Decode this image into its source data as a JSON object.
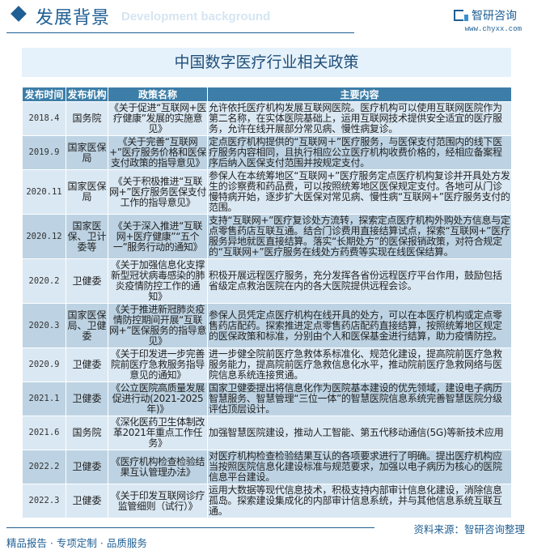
{
  "header": {
    "title": "发展背景",
    "subtitle": "Development background",
    "brand": "智研咨询",
    "url": "www.chyxx.com"
  },
  "table_title": "中国数字医疗行业相关政策",
  "columns": [
    "发布时间",
    "发布机构",
    "政策名称",
    "主要内容"
  ],
  "rows": [
    {
      "date": "2018.4",
      "org": "国务院",
      "name": "《关于促进“互联网+医疗健康”发展的实施意见》",
      "content": "允许依托医疗机构发展互联网医院。医疗机构可以使用互联网医院作为第二名称，在实体医院基础上，运用互联网技术提供安全适宜的医疗服务，允许在线开展部分常见病、慢性病复诊。"
    },
    {
      "date": "2019.9",
      "org": "国家医保局",
      "name": "《关于完善“互联网+”医疗服务价格和医保支付政策的指导意见》",
      "content": "定点医疗机构提供的“互联网＋”医疗服务，与医保支付范围内的线下医疗服务内容相同，且执行相应公立医疗机构收费价格的，经相应备案程序后纳入医保支付范围并按规定支付。"
    },
    {
      "date": "2020.11",
      "org": "国家医保局",
      "name": "《关于积极推进“互联网+”医疗服务医保支付工作的指导意见》",
      "content": "参保人在本统筹地区“互联网+”医疗服务定点医疗机构复诊并开具处方发生的诊察费和药品费，可以按照统筹地区医保规定支付。各地可从门诊慢特病开始，逐步扩大医保对常见病、慢性病“互联网+”医疗服务支付的范围。"
    },
    {
      "date": "2020.12",
      "org": "国家医保、卫计委等",
      "name": "《关于深入推进“互联网+医疗健康”“五个一”服务行动的通知》",
      "content": "支持“互联网+”医疗复诊处方流转，探索定点医疗机构外购处方信息与定点零售药店互联互通。结合门诊费用直接结算试点，探索“互联网+”医疗服务异地就医直接结算。落实“长期处方”的医保报销政策，对符合规定的“互联网+”医疗服务在线处方药费等实现在线医保结算。"
    },
    {
      "date": "2020.2",
      "org": "卫健委",
      "name": "《关于加强信息化支撑新型冠状病毒感染的肺炎疫情防控工作的通知》",
      "content": "积极开展远程医疗服务，充分发挥各省份远程医疗平台作用，鼓励包括省级定点救治医院在内的各大医院提供远程会诊。"
    },
    {
      "date": "2020.3",
      "org": "国家医保局、卫健委",
      "name": "《关于推进新冠肺炎疫情防控期间开展“互联网+”医保服务的指导意见》",
      "content": "参保人员凭定点医疗机构在线开具的处方，可以在本医疗机构或定点零售药店配药。探索推进定点零售药店配药直接结算，按照统筹地区规定的医保政策和标准，分别由个人和医保基金进行结算，助力疫情防控。"
    },
    {
      "date": "2020.9",
      "org": "卫健委",
      "name": "《关于印发进一步完善院前医疗急救服务指导意见的通知》",
      "content": "进一步健全院前医疗急救体系标准化、规范化建设，提高院前医疗急救服务能力，提高院前医疗急救信息化水平，推动院前医疗急救网络与医院信息系统连接贯通。"
    },
    {
      "date": "2021.1",
      "org": "卫健委",
      "name": "《公立医院高质量发展促进行动(2021-2025年)》",
      "content": "国家卫健委提出将信息化作为医院基本建设的优先领域，建设电子病历智慧服务、智慧管理“三位一体”的智慧医院信息系统完善智慧医院分级评估顶层设计。"
    },
    {
      "date": "2021.6",
      "org": "国务院",
      "name": "《深化医药卫生体制改革2021年重点工作任务》",
      "content": "加强智慧医院建设，推动人工智能、第五代移动通信(5G)等新技术应用"
    },
    {
      "date": "2022.2",
      "org": "卫健委",
      "name": "《医疗机构检查检验结果互认管理办法》",
      "content": "对医疗机构检查检验结果互认的各项要求进行了明确。提出医疗机构应当按照医院信息化建设标准与规范要求，加强以电子病历为核心的医院信息平台建设。"
    },
    {
      "date": "2022.3",
      "org": "卫健委",
      "name": "《关于印发互联网诊疗监管细则（试行）》",
      "content": "运用大数据等现代信息技术，积极支持内部审计信息化建设，消除信息孤岛。探索建设集成化的内部审计信息系统，并与其他信息系统互联互通。"
    }
  ],
  "source": "资料来源：智研咨询整理",
  "footer": "精品报告 · 专项定制 · 品质服务",
  "colors": {
    "accent": "#1f5f94",
    "header_bg": "#3d7ea8",
    "row_light": "#dae8f3",
    "row_dark": "#bdd3e3"
  }
}
